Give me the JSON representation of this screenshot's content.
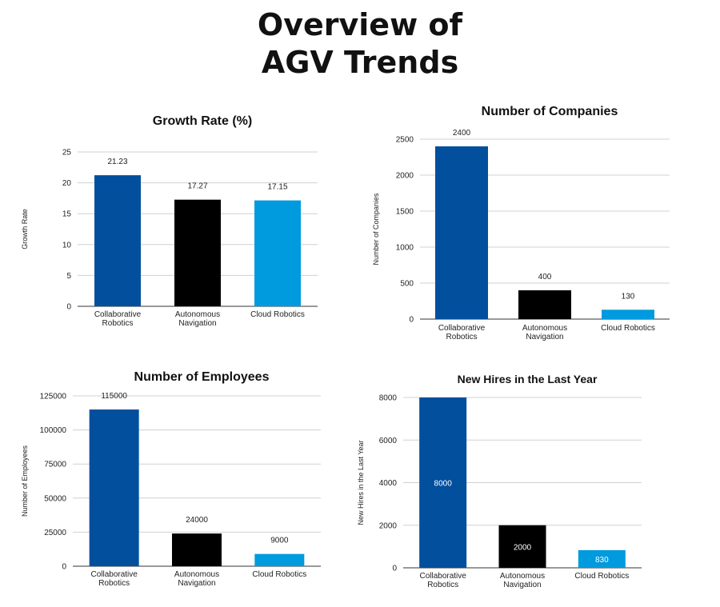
{
  "page": {
    "title_line1": "Overview of",
    "title_line2": "AGV Trends"
  },
  "colors": {
    "collaborative": "#024f9e",
    "autonomous": "#000000",
    "cloud": "#009ade"
  },
  "chart_data": [
    {
      "type": "bar",
      "title": "Growth Rate (%)",
      "ylabel": "Growth Rate",
      "xlabel": "",
      "categories": [
        [
          "Collaborative",
          "Robotics"
        ],
        [
          "Autonomous",
          "Navigation"
        ],
        [
          "Cloud Robotics"
        ]
      ],
      "values": [
        21.23,
        17.27,
        17.15
      ],
      "value_labels": [
        "21.23",
        "17.27",
        "17.15"
      ],
      "label_position": "above",
      "ylim": [
        0,
        25
      ],
      "yticks": [
        0,
        5,
        10,
        15,
        20,
        25
      ],
      "grid": true,
      "legend": "none"
    },
    {
      "type": "bar",
      "title": "Number of Companies",
      "ylabel": "Number of Companies",
      "xlabel": "",
      "categories": [
        [
          "Collaborative",
          "Robotics"
        ],
        [
          "Autonomous",
          "Navigation"
        ],
        [
          "Cloud Robotics"
        ]
      ],
      "values": [
        2400,
        400,
        130
      ],
      "value_labels": [
        "2400",
        "400",
        "130"
      ],
      "label_position": "above",
      "ylim": [
        0,
        2500
      ],
      "yticks": [
        0,
        500,
        1000,
        1500,
        2000,
        2500
      ],
      "grid": true,
      "legend": "none"
    },
    {
      "type": "bar",
      "title": "Number of Employees",
      "ylabel": "Number of Employees",
      "xlabel": "",
      "categories": [
        [
          "Collaborative",
          "Robotics"
        ],
        [
          "Autonomous",
          "Navigation"
        ],
        [
          "Cloud Robotics"
        ]
      ],
      "values": [
        115000,
        24000,
        9000
      ],
      "value_labels": [
        "115000",
        "24000",
        "9000"
      ],
      "label_position": "above",
      "ylim": [
        0,
        125000
      ],
      "yticks": [
        0,
        25000,
        50000,
        75000,
        100000,
        125000
      ],
      "grid": true,
      "legend": "none"
    },
    {
      "type": "bar",
      "title": "New Hires in the Last Year",
      "ylabel": "New Hires in the Last Year",
      "xlabel": "",
      "categories": [
        [
          "Collaborative",
          "Robotics"
        ],
        [
          "Autonomous",
          "Navigation"
        ],
        [
          "Cloud Robotics"
        ]
      ],
      "values": [
        8000,
        2000,
        830
      ],
      "value_labels": [
        "8000",
        "2000",
        "830"
      ],
      "label_position": "inside",
      "ylim": [
        0,
        8000
      ],
      "yticks": [
        0,
        2000,
        4000,
        6000,
        8000
      ],
      "grid": true,
      "legend": "none"
    }
  ]
}
